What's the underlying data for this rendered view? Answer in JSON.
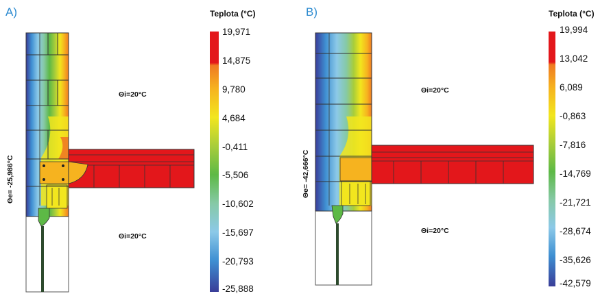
{
  "panels": [
    {
      "label": "A)",
      "scale_title": "Teplota (°C)",
      "scale_ticks": [
        "19,971",
        "14,875",
        "9,780",
        "4,684",
        "-0,411",
        "-5,506",
        "-10,602",
        "-15,697",
        "-20,793",
        "-25,888"
      ],
      "interior_label_top": "Θi=20°C",
      "interior_label_bottom": "Θi=20°C",
      "exterior_label": "Θe= -25,986°C"
    },
    {
      "label": "B)",
      "scale_title": "Teplota (°C)",
      "scale_ticks": [
        "19,994",
        "13,042",
        "6,089",
        "-0,863",
        "-7,816",
        "-14,769",
        "-21,721",
        "-28,674",
        "-35,626",
        "-42,579"
      ],
      "interior_label_top": "Θi=20°C",
      "interior_label_bottom": "Θi=20°C",
      "exterior_label": "Θe= -42,666°C"
    }
  ],
  "scale_colors": [
    "#e3171b",
    "#ef7a22",
    "#f6b31f",
    "#f2e61e",
    "#a8cd3a",
    "#5db946",
    "#86c9a6",
    "#8cc9e8",
    "#3e8fd2",
    "#3a3d98"
  ]
}
